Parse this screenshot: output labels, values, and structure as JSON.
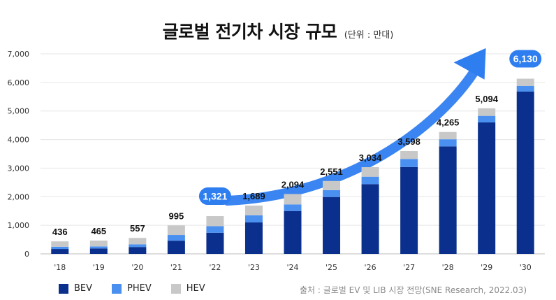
{
  "header": {
    "title": "글로벌 전기차 시장 규모",
    "unit": "(단위 : 만대)"
  },
  "colors": {
    "bev": "#0a2f8c",
    "phev": "#4a90f0",
    "hev": "#c8c8c8",
    "arrow": "#2f7ef0",
    "highlight": "#2f7ef0"
  },
  "legend": {
    "bev": "BEV",
    "phev": "PHEV",
    "hev": "HEV"
  },
  "source": "출처 : 글로벌 EV 및 LIB 시장 전망(SNE Research, 2022.03)",
  "chart_data": {
    "type": "bar",
    "stacked": true,
    "title": "글로벌 전기차 시장 규모",
    "unit": "(단위 : 만대)",
    "categories": [
      "'18",
      "'19",
      "'20",
      "'21",
      "'22",
      "'23",
      "'24",
      "'25",
      "'26",
      "'27",
      "'28",
      "'29",
      "'30"
    ],
    "totals": [
      436,
      465,
      557,
      995,
      1321,
      1689,
      2094,
      2551,
      3034,
      3598,
      4265,
      5094,
      6130
    ],
    "total_labels": [
      "436",
      "465",
      "557",
      "995",
      "1,321",
      "1,689",
      "2,094",
      "2,551",
      "3,034",
      "3,598",
      "4,265",
      "5,094",
      "6,130"
    ],
    "highlighted": [
      "'22",
      "'30"
    ],
    "series": [
      {
        "name": "BEV",
        "values": [
          170,
          190,
          240,
          460,
          740,
          1100,
          1500,
          1990,
          2440,
          3040,
          3760,
          4600,
          5680
        ]
      },
      {
        "name": "PHEV",
        "values": [
          80,
          70,
          90,
          200,
          230,
          250,
          230,
          240,
          260,
          280,
          250,
          230,
          200
        ]
      },
      {
        "name": "HEV",
        "values": [
          186,
          205,
          227,
          335,
          351,
          339,
          364,
          321,
          334,
          278,
          255,
          264,
          250
        ]
      }
    ],
    "yticks": [
      "0",
      "1,000",
      "2,000",
      "3,000",
      "4,000",
      "5,000",
      "6,000",
      "7,000"
    ],
    "ylim": [
      0,
      7000
    ],
    "grid": true,
    "legend_position": "bottom-left"
  }
}
